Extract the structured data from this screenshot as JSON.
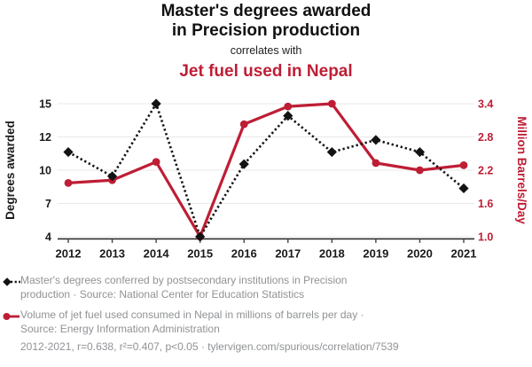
{
  "header": {
    "title_line1": "Master's degrees awarded",
    "title_line2": "in Precision production",
    "connector": "correlates with",
    "subtitle": "Jet fuel used in Nepal"
  },
  "colors": {
    "accent_red": "#be1e35",
    "series_black": "#131313",
    "axis_text": "#1a1a1a",
    "grid": "#e8e8e8",
    "legend_gray": "#909295"
  },
  "chart_data": {
    "type": "line",
    "title": "Master's degrees awarded in Precision production correlates with Jet fuel used in Nepal",
    "x": [
      "2012",
      "2013",
      "2014",
      "2015",
      "2016",
      "2017",
      "2018",
      "2019",
      "2020",
      "2021"
    ],
    "series": [
      {
        "key": "masters-degrees",
        "name": "Master's degrees awarded in Precision production",
        "axis": "left",
        "line_style": "dotted",
        "marker": "diamond",
        "color": "#131313",
        "values": [
          11,
          9,
          15,
          4,
          10,
          14,
          11,
          12,
          11,
          8
        ]
      },
      {
        "key": "jet-fuel",
        "name": "Jet fuel used in Nepal",
        "axis": "right",
        "line_style": "solid",
        "marker": "circle",
        "color": "#be1e35",
        "values": [
          1.97,
          2.02,
          2.35,
          1.0,
          3.03,
          3.35,
          3.4,
          2.33,
          2.2,
          2.29
        ]
      }
    ],
    "left_axis": {
      "label": "Degrees awarded",
      "ticks": [
        "15",
        "12",
        "10",
        "7",
        "4"
      ],
      "range": [
        4,
        15
      ]
    },
    "right_axis": {
      "label": "Million Barrels/Day",
      "ticks": [
        "3.4",
        "2.8",
        "2.2",
        "1.6",
        "1.0"
      ],
      "range": [
        1.0,
        3.4
      ]
    },
    "grid": "horizontal",
    "legend_position": "below"
  },
  "legend": {
    "items": [
      {
        "key": "masters-degrees",
        "line1": "Master's degrees conferred by postsecondary institutions in Precision",
        "line2": "production · Source: National Center for Education Statistics"
      },
      {
        "key": "jet-fuel",
        "line1": "Volume of jet fuel used consumed in Nepal in millions of barrels per day ·",
        "line2": "Source: Energy Information Administration"
      }
    ]
  },
  "footer": {
    "stats": "2012-2021, r=0.638, r²=0.407, p<0.05 · tylervigen.com/spurious/correlation/7539"
  }
}
